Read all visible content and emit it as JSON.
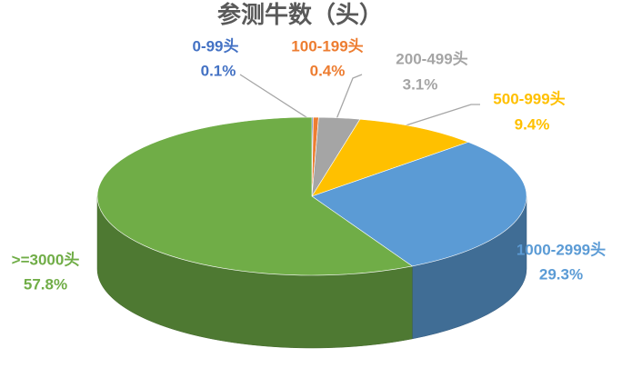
{
  "chart_data": {
    "type": "pie",
    "title": "参测牛数（头）",
    "categories": [
      "0-99头",
      "100-199头",
      "200-499头",
      "500-999头",
      "1000-2999头",
      ">=3000头"
    ],
    "values": [
      0.1,
      0.4,
      3.1,
      9.4,
      29.3,
      57.8
    ],
    "value_labels": [
      "0.1%",
      "0.4%",
      "3.1%",
      "9.4%",
      "29.3%",
      "57.8%"
    ],
    "colors": [
      "#4472c4",
      "#ed7d31",
      "#a5a5a5",
      "#ffc000",
      "#5b9bd5",
      "#70ad47"
    ]
  }
}
